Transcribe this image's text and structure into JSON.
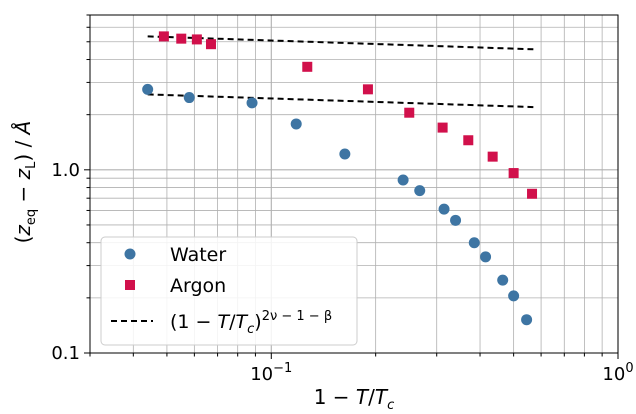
{
  "chart_data": {
    "type": "scatter",
    "xscale": "log",
    "yscale": "log",
    "xlim": [
      0.03,
      1.0
    ],
    "ylim": [
      0.1,
      7.0
    ],
    "xlabel": "1 − T/T_c",
    "ylabel": "(z_eq − z_L) / Å",
    "grid": true,
    "legend_position": "lower-left",
    "x_tick_labels": [
      {
        "value": 0.1,
        "label": "10⁻¹"
      },
      {
        "value": 1.0,
        "label": "10⁰"
      }
    ],
    "y_tick_labels": [
      {
        "value": 0.1,
        "label": "0.1"
      },
      {
        "value": 1.0,
        "label": "1.0"
      }
    ],
    "series": [
      {
        "name": "Water",
        "marker": "circle",
        "color": "#3e75a3",
        "points": [
          {
            "x": 0.044,
            "y": 2.75
          },
          {
            "x": 0.058,
            "y": 2.48
          },
          {
            "x": 0.088,
            "y": 2.32
          },
          {
            "x": 0.118,
            "y": 1.78
          },
          {
            "x": 0.163,
            "y": 1.22
          },
          {
            "x": 0.24,
            "y": 0.88
          },
          {
            "x": 0.268,
            "y": 0.77
          },
          {
            "x": 0.315,
            "y": 0.61
          },
          {
            "x": 0.34,
            "y": 0.53
          },
          {
            "x": 0.385,
            "y": 0.4
          },
          {
            "x": 0.415,
            "y": 0.335
          },
          {
            "x": 0.465,
            "y": 0.25
          },
          {
            "x": 0.5,
            "y": 0.205
          },
          {
            "x": 0.545,
            "y": 0.152
          }
        ]
      },
      {
        "name": "Argon",
        "marker": "square",
        "color": "#d1104b",
        "points": [
          {
            "x": 0.049,
            "y": 5.35
          },
          {
            "x": 0.055,
            "y": 5.2
          },
          {
            "x": 0.061,
            "y": 5.15
          },
          {
            "x": 0.067,
            "y": 4.85
          },
          {
            "x": 0.127,
            "y": 3.65
          },
          {
            "x": 0.19,
            "y": 2.75
          },
          {
            "x": 0.25,
            "y": 2.05
          },
          {
            "x": 0.312,
            "y": 1.7
          },
          {
            "x": 0.37,
            "y": 1.45
          },
          {
            "x": 0.435,
            "y": 1.18
          },
          {
            "x": 0.5,
            "y": 0.96
          },
          {
            "x": 0.565,
            "y": 0.74
          }
        ]
      }
    ],
    "lines": [
      {
        "name": "(1 − T/T_c)^(2ν − 1 − β)",
        "style": "dashed",
        "color": "#000000",
        "points": [
          {
            "x": 0.044,
            "y": 5.35
          },
          {
            "x": 0.57,
            "y": 4.55
          }
        ]
      },
      {
        "name": "(1 − T/T_c)^(2ν − 1 − β)",
        "style": "dashed",
        "color": "#000000",
        "points": [
          {
            "x": 0.044,
            "y": 2.58
          },
          {
            "x": 0.57,
            "y": 2.2
          }
        ]
      }
    ],
    "legend": [
      {
        "label": "Water",
        "marker": "circle",
        "color": "#3e75a3"
      },
      {
        "label": "Argon",
        "marker": "square",
        "color": "#d1104b"
      },
      {
        "label": "(1 − T/T_c)^(2ν − 1 − β)",
        "marker": "dashed-line",
        "color": "#000000"
      }
    ]
  }
}
